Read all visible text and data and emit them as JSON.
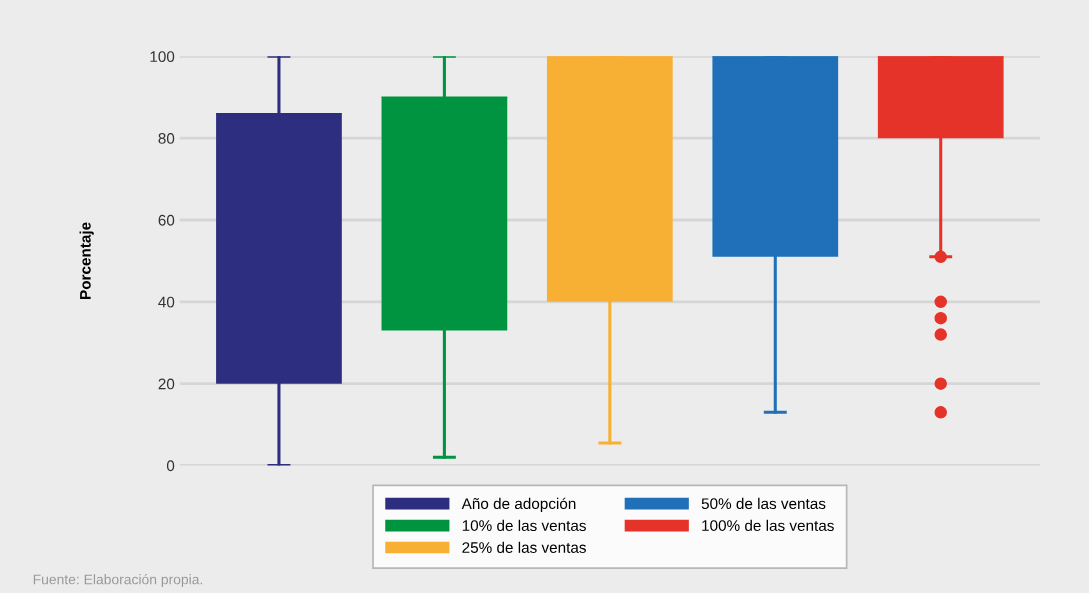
{
  "chart_data": {
    "type": "box",
    "ylabel": "Porcentaje",
    "categories": [
      null,
      null,
      null,
      null,
      null
    ],
    "series": [
      {
        "name": "Año de adopción",
        "color": "#2d2e7f",
        "boxes": [
          {
            "low": 0,
            "q1": 20,
            "median": 86,
            "q3": 86,
            "high": 100
          },
          null,
          null,
          null,
          null
        ]
      },
      {
        "name": "10% de las ventas",
        "color": "#009340",
        "boxes": [
          null,
          {
            "low": 2,
            "q1": 33,
            "median": 90,
            "q3": 90,
            "high": 100
          },
          null,
          null,
          null
        ]
      },
      {
        "name": "25% de las ventas",
        "color": "#f7b033",
        "boxes": [
          null,
          null,
          {
            "low": 5.5,
            "q1": 40,
            "median": 100,
            "q3": 100,
            "high": 100
          },
          null,
          null
        ]
      },
      {
        "name": "50% de las ventas",
        "color": "#1f70b8",
        "boxes": [
          null,
          null,
          null,
          {
            "low": 13,
            "q1": 51,
            "median": 100,
            "q3": 100,
            "high": 100
          },
          null
        ]
      },
      {
        "name": "100% de las ventas",
        "color": "#e5332a",
        "boxes": [
          null,
          null,
          null,
          null,
          {
            "low": 51,
            "q1": 80,
            "median": 100,
            "q3": 100,
            "high": 100,
            "outliers": [
              51,
              40,
              36,
              32,
              20,
              13
            ]
          }
        ]
      }
    ],
    "ylim": [
      0,
      100
    ],
    "yticks": [
      0,
      20,
      40,
      60,
      80,
      100
    ],
    "grid": "y",
    "legend": "bottom",
    "annotations": [
      "Fuente: Elaboración propia."
    ]
  }
}
